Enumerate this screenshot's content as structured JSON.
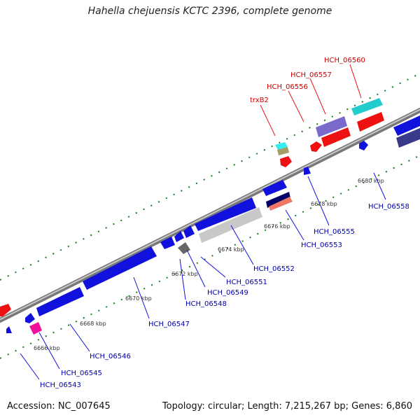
{
  "title": "Hahella chejuensis KCTC 2396, complete genome",
  "footer": {
    "accession": "Accession: NC_007645",
    "topology": "Topology: circular; Length: 7,215,267 bp; Genes: 6,860"
  },
  "colors": {
    "backbone": "#8a8a8a",
    "tick": "#1a7a1a",
    "label_forward": "#cc0000",
    "label_reverse": "#0000aa"
  },
  "tick_labels": [
    "6666 kbp",
    "6668 kbp",
    "6670 kbp",
    "6672 kbp",
    "6674 kbp",
    "6676 kbp",
    "6678 kbp",
    "6680 kbp"
  ],
  "gene_labels_forward": [
    "HCH_06560",
    "HCH_06557",
    "HCH_06556",
    "trxB2"
  ],
  "gene_labels_reverse": [
    "HCH_06558",
    "HCH_06555",
    "HCH_06553",
    "HCH_06552",
    "HCH_06551",
    "HCH_06549",
    "HCH_06548",
    "HCH_06547",
    "HCH_06546",
    "HCH_06545",
    "HCH_06543"
  ]
}
